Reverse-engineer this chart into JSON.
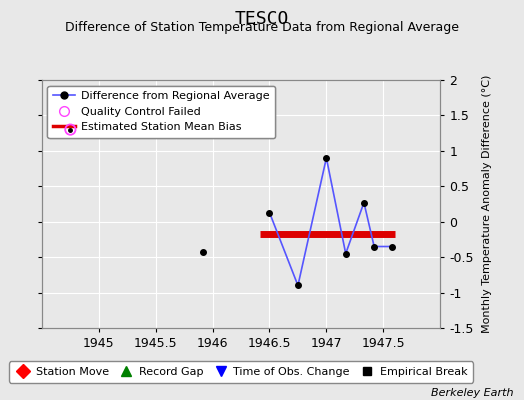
{
  "title": "TESCO",
  "subtitle": "Difference of Station Temperature Data from Regional Average",
  "ylabel": "Monthly Temperature Anomaly Difference (°C)",
  "xlabel_credit": "Berkeley Earth",
  "xlim": [
    1944.5,
    1948.0
  ],
  "ylim": [
    -1.5,
    2.0
  ],
  "yticks": [
    -1.5,
    -1.0,
    -0.5,
    0.0,
    0.5,
    1.0,
    1.5,
    2.0
  ],
  "ytick_labels": [
    "-1.5",
    "-1",
    "-0.5",
    "0",
    "0.5",
    "1",
    "1.5",
    "2"
  ],
  "xticks": [
    1945.0,
    1945.5,
    1946.0,
    1946.5,
    1947.0,
    1947.5
  ],
  "xtick_labels": [
    "1945",
    "1945.5",
    "1946",
    "1946.5",
    "1947",
    "1947.5"
  ],
  "isolated_x": [
    1945.92
  ],
  "isolated_y": [
    -0.43
  ],
  "line_x": [
    1946.5,
    1946.75,
    1947.0,
    1947.17,
    1947.33,
    1947.42,
    1947.58
  ],
  "line_y": [
    0.13,
    -0.9,
    0.9,
    -0.45,
    0.27,
    -0.35,
    -0.35
  ],
  "line_color": "#5555ff",
  "qc_x": [
    1944.75
  ],
  "qc_y": [
    1.3
  ],
  "qc_color": "#ff44ff",
  "bias_x_start": 1946.42,
  "bias_x_end": 1947.6,
  "bias_y": -0.17,
  "bias_color": "#dd0000",
  "bg_color": "#e8e8e8",
  "grid_color": "#ffffff",
  "title_fontsize": 13,
  "subtitle_fontsize": 9,
  "legend_fontsize": 8
}
